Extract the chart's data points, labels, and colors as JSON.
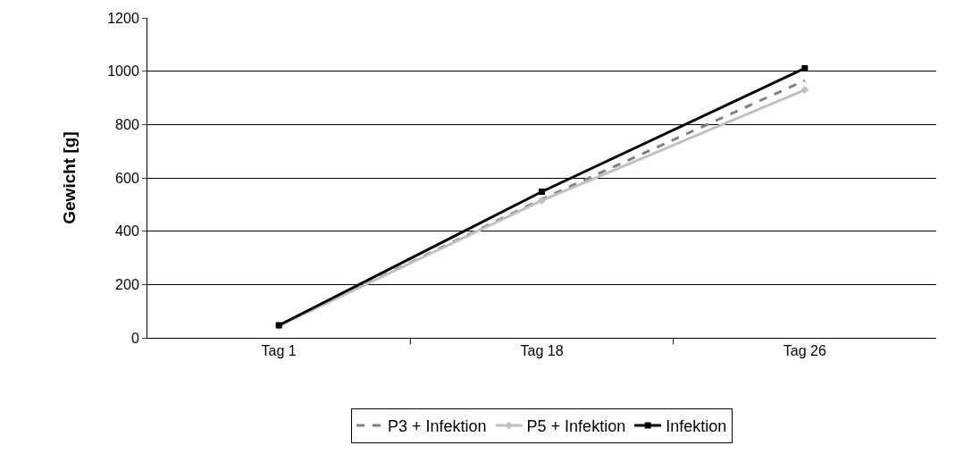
{
  "chart_data": {
    "type": "line",
    "ylabel": "Gewicht [g]",
    "categories": [
      "Tag 1",
      "Tag 18",
      "Tag 26"
    ],
    "series": [
      {
        "name": "P3 + Infektion",
        "color": "#808080",
        "values": [
          45,
          520,
          965
        ],
        "line_style": "dashed",
        "marker": "none"
      },
      {
        "name": "P5 + Infektion",
        "color": "#c0c0c0",
        "values": [
          45,
          515,
          930
        ],
        "line_style": "solid",
        "marker": "diamond"
      },
      {
        "name": "Infektion",
        "color": "#000000",
        "values": [
          47,
          548,
          1011
        ],
        "line_style": "solid",
        "marker": "square"
      }
    ],
    "ylim": [
      0,
      1200
    ],
    "yticks": [
      0,
      200,
      400,
      600,
      800,
      1000,
      1200
    ],
    "grid": "y",
    "legend": "bottom"
  }
}
